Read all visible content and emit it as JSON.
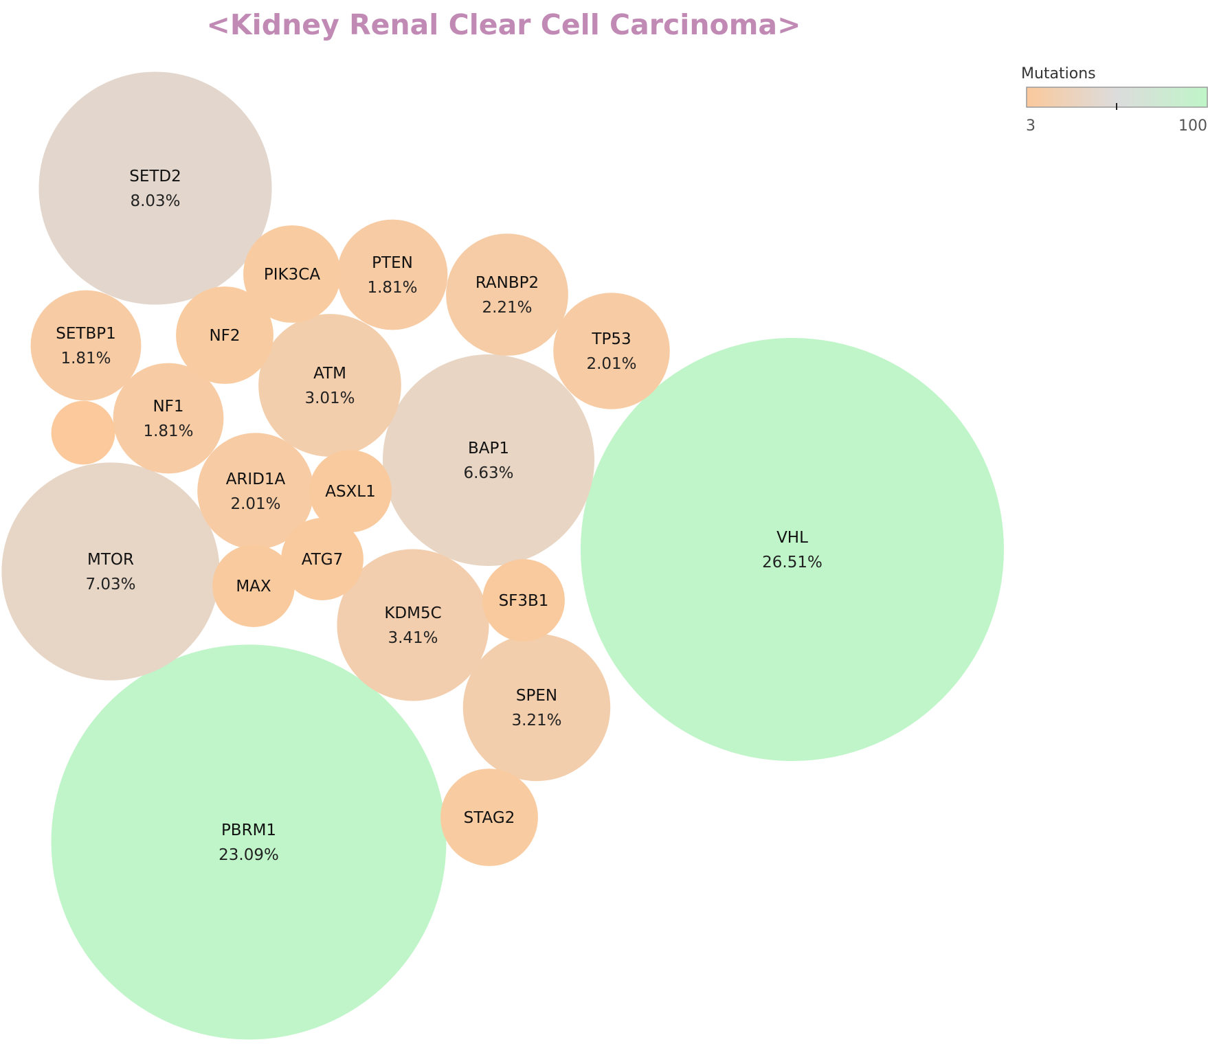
{
  "chart_data": {
    "type": "bubble",
    "title": "<Kidney Renal Clear Cell Carcinoma>",
    "legend": {
      "title": "Mutations",
      "min_label": "3",
      "max_label": "100",
      "min": 3,
      "max": 100,
      "colors": [
        "#fbc99c",
        "#dcdcdc",
        "#bff5c8"
      ],
      "placement": "top-right"
    },
    "bubbles": [
      {
        "gene": "VHL",
        "pct": "26.51%",
        "mutations": 132
      },
      {
        "gene": "PBRM1",
        "pct": "23.09%",
        "mutations": 115
      },
      {
        "gene": "SETD2",
        "pct": "8.03%",
        "mutations": 40
      },
      {
        "gene": "MTOR",
        "pct": "7.03%",
        "mutations": 35
      },
      {
        "gene": "BAP1",
        "pct": "6.63%",
        "mutations": 33
      },
      {
        "gene": "KDM5C",
        "pct": "3.41%",
        "mutations": 17
      },
      {
        "gene": "SPEN",
        "pct": "3.21%",
        "mutations": 16
      },
      {
        "gene": "ATM",
        "pct": "3.01%",
        "mutations": 15
      },
      {
        "gene": "RANBP2",
        "pct": "2.21%",
        "mutations": 11
      },
      {
        "gene": "TP53",
        "pct": "2.01%",
        "mutations": 10
      },
      {
        "gene": "ARID1A",
        "pct": "2.01%",
        "mutations": 10
      },
      {
        "gene": "PTEN",
        "pct": "1.81%",
        "mutations": 9
      },
      {
        "gene": "SETBP1",
        "pct": "1.81%",
        "mutations": 9
      },
      {
        "gene": "NF1",
        "pct": "1.81%",
        "mutations": 9
      },
      {
        "gene": "NF2",
        "pct": "",
        "mutations": 7
      },
      {
        "gene": "PIK3CA",
        "pct": "",
        "mutations": 7
      },
      {
        "gene": "STAG2",
        "pct": "",
        "mutations": 7
      },
      {
        "gene": "SF3B1",
        "pct": "",
        "mutations": 5
      },
      {
        "gene": "ASXL1",
        "pct": "",
        "mutations": 5
      },
      {
        "gene": "ATG7",
        "pct": "",
        "mutations": 5
      },
      {
        "gene": "MAX",
        "pct": "",
        "mutations": 5
      },
      {
        "gene": "",
        "pct": "",
        "mutations": 3
      }
    ]
  }
}
